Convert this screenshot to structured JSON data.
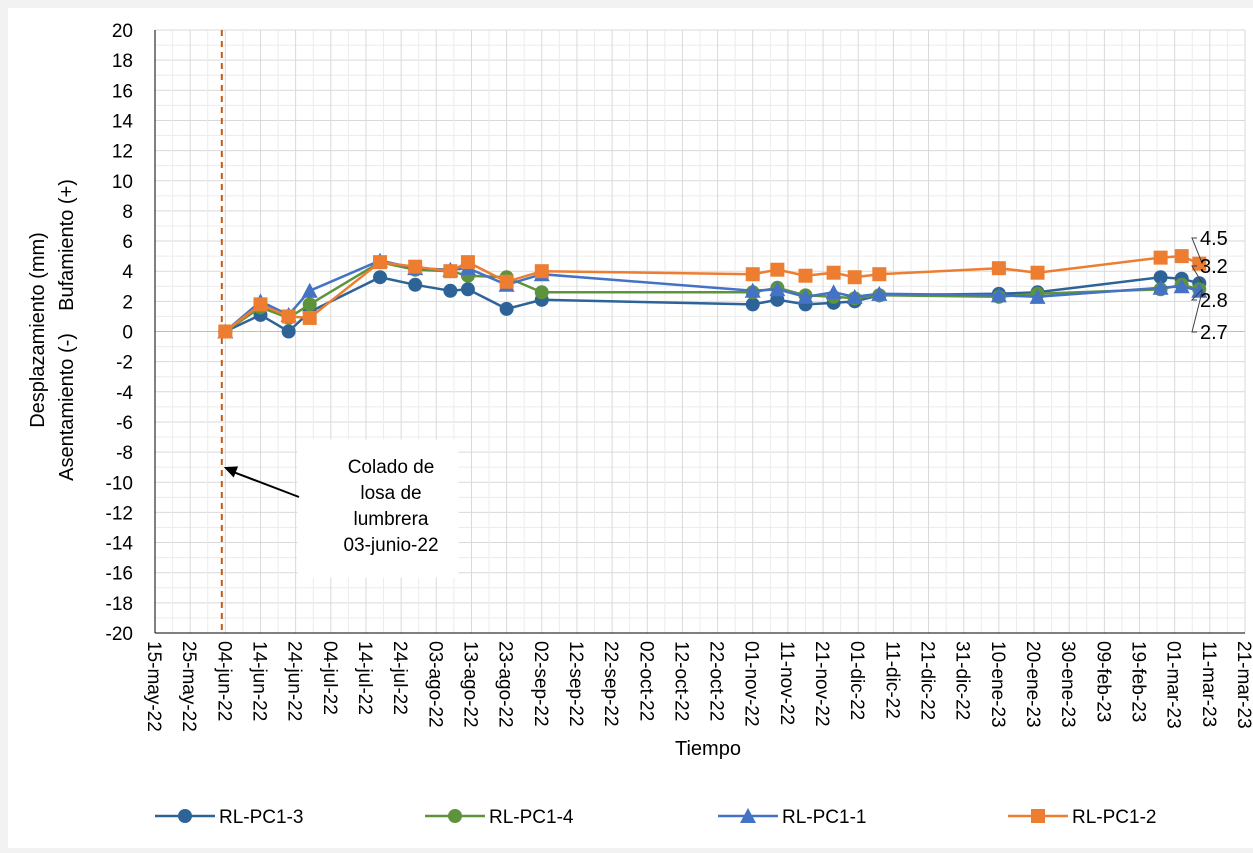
{
  "chart_data": {
    "type": "line",
    "title": "",
    "xlabel": "Tiempo",
    "ylabel_top": "Desplazamiento (mm)",
    "ylabel_bottom": "Asentamiento (-)    Bufamiento (+)",
    "ylim": [
      -20,
      20
    ],
    "yticks": [
      20,
      18,
      16,
      14,
      12,
      10,
      8,
      6,
      4,
      2,
      0,
      -2,
      -4,
      -6,
      -8,
      -10,
      -12,
      -14,
      -16,
      -18,
      -20
    ],
    "xlim": [
      "2022-05-15",
      "2023-03-21"
    ],
    "xtick_labels": [
      "15-may-22",
      "25-may-22",
      "04-jun-22",
      "14-jun-22",
      "24-jun-22",
      "04-jul-22",
      "14-jul-22",
      "24-jul-22",
      "03-ago-22",
      "13-ago-22",
      "23-ago-22",
      "02-sep-22",
      "12-sep-22",
      "22-sep-22",
      "02-oct-22",
      "12-oct-22",
      "22-oct-22",
      "01-nov-22",
      "11-nov-22",
      "21-nov-22",
      "01-dic-22",
      "11-dic-22",
      "21-dic-22",
      "31-dic-22",
      "10-ene-23",
      "20-ene-23",
      "30-ene-23",
      "09-feb-23",
      "19-feb-23",
      "01-mar-23",
      "11-mar-23",
      "21-mar-23"
    ],
    "grid": true,
    "legend": "bottom",
    "reference_line": {
      "date": "2022-06-03",
      "color": "#c55a11"
    },
    "annotation": {
      "lines": [
        "Colado de",
        "losa de",
        "lumbrera",
        "03-junio-22"
      ],
      "arrow_to": [
        "2022-06-03",
        -9
      ]
    },
    "end_labels": [
      "4.5",
      "3.2",
      "2.8",
      "2.7"
    ],
    "series": [
      {
        "name": "RL-PC1-3",
        "color": "#2e6398",
        "marker": "circle",
        "points": [
          [
            "2022-06-04",
            0.0
          ],
          [
            "2022-06-14",
            1.1
          ],
          [
            "2022-06-22",
            0.0
          ],
          [
            "2022-06-28",
            1.3
          ],
          [
            "2022-07-18",
            3.6
          ],
          [
            "2022-07-28",
            3.1
          ],
          [
            "2022-08-07",
            2.7
          ],
          [
            "2022-08-12",
            2.8
          ],
          [
            "2022-08-23",
            1.5
          ],
          [
            "2022-09-02",
            2.1
          ],
          [
            "2022-11-01",
            1.8
          ],
          [
            "2022-11-08",
            2.1
          ],
          [
            "2022-11-16",
            1.8
          ],
          [
            "2022-11-24",
            1.9
          ],
          [
            "2022-11-30",
            2.0
          ],
          [
            "2022-12-07",
            2.4
          ],
          [
            "2023-01-10",
            2.5
          ],
          [
            "2023-01-21",
            2.6
          ],
          [
            "2023-02-25",
            3.6
          ],
          [
            "2023-03-03",
            3.5
          ],
          [
            "2023-03-08",
            3.2
          ]
        ]
      },
      {
        "name": "RL-PC1-4",
        "color": "#5e933e",
        "marker": "circle",
        "points": [
          [
            "2022-06-04",
            0.0
          ],
          [
            "2022-06-14",
            1.6
          ],
          [
            "2022-06-22",
            0.9
          ],
          [
            "2022-06-28",
            1.8
          ],
          [
            "2022-07-18",
            4.6
          ],
          [
            "2022-07-28",
            4.1
          ],
          [
            "2022-08-07",
            4.0
          ],
          [
            "2022-08-12",
            3.7
          ],
          [
            "2022-08-23",
            3.6
          ],
          [
            "2022-09-02",
            2.6
          ],
          [
            "2022-11-01",
            2.6
          ],
          [
            "2022-11-08",
            2.9
          ],
          [
            "2022-11-16",
            2.4
          ],
          [
            "2022-11-24",
            2.3
          ],
          [
            "2022-11-30",
            2.2
          ],
          [
            "2022-12-07",
            2.4
          ],
          [
            "2023-01-10",
            2.3
          ],
          [
            "2023-01-21",
            2.5
          ],
          [
            "2023-02-25",
            2.8
          ],
          [
            "2023-03-03",
            3.1
          ],
          [
            "2023-03-08",
            2.8
          ]
        ]
      },
      {
        "name": "RL-PC1-1",
        "color": "#4472c4",
        "marker": "triangle",
        "points": [
          [
            "2022-06-04",
            0.0
          ],
          [
            "2022-06-14",
            2.0
          ],
          [
            "2022-06-22",
            1.1
          ],
          [
            "2022-06-28",
            2.7
          ],
          [
            "2022-07-18",
            4.7
          ],
          [
            "2022-07-28",
            4.2
          ],
          [
            "2022-08-07",
            4.1
          ],
          [
            "2022-08-12",
            4.2
          ],
          [
            "2022-08-23",
            3.1
          ],
          [
            "2022-09-02",
            3.8
          ],
          [
            "2022-11-01",
            2.7
          ],
          [
            "2022-11-08",
            2.8
          ],
          [
            "2022-11-16",
            2.3
          ],
          [
            "2022-11-24",
            2.6
          ],
          [
            "2022-11-30",
            2.3
          ],
          [
            "2022-12-07",
            2.5
          ],
          [
            "2023-01-10",
            2.4
          ],
          [
            "2023-01-21",
            2.3
          ],
          [
            "2023-02-25",
            2.9
          ],
          [
            "2023-03-03",
            3.0
          ],
          [
            "2023-03-08",
            2.7
          ]
        ]
      },
      {
        "name": "RL-PC1-2",
        "color": "#ed7d31",
        "marker": "square",
        "points": [
          [
            "2022-06-04",
            0.0
          ],
          [
            "2022-06-14",
            1.8
          ],
          [
            "2022-06-22",
            1.0
          ],
          [
            "2022-06-28",
            0.9
          ],
          [
            "2022-07-18",
            4.6
          ],
          [
            "2022-07-28",
            4.3
          ],
          [
            "2022-08-07",
            4.0
          ],
          [
            "2022-08-12",
            4.6
          ],
          [
            "2022-08-23",
            3.3
          ],
          [
            "2022-09-02",
            4.0
          ],
          [
            "2022-11-01",
            3.8
          ],
          [
            "2022-11-08",
            4.1
          ],
          [
            "2022-11-16",
            3.7
          ],
          [
            "2022-11-24",
            3.9
          ],
          [
            "2022-11-30",
            3.6
          ],
          [
            "2022-12-07",
            3.8
          ],
          [
            "2023-01-10",
            4.2
          ],
          [
            "2023-01-21",
            3.9
          ],
          [
            "2023-02-25",
            4.9
          ],
          [
            "2023-03-03",
            5.0
          ],
          [
            "2023-03-08",
            4.5
          ]
        ]
      }
    ]
  }
}
